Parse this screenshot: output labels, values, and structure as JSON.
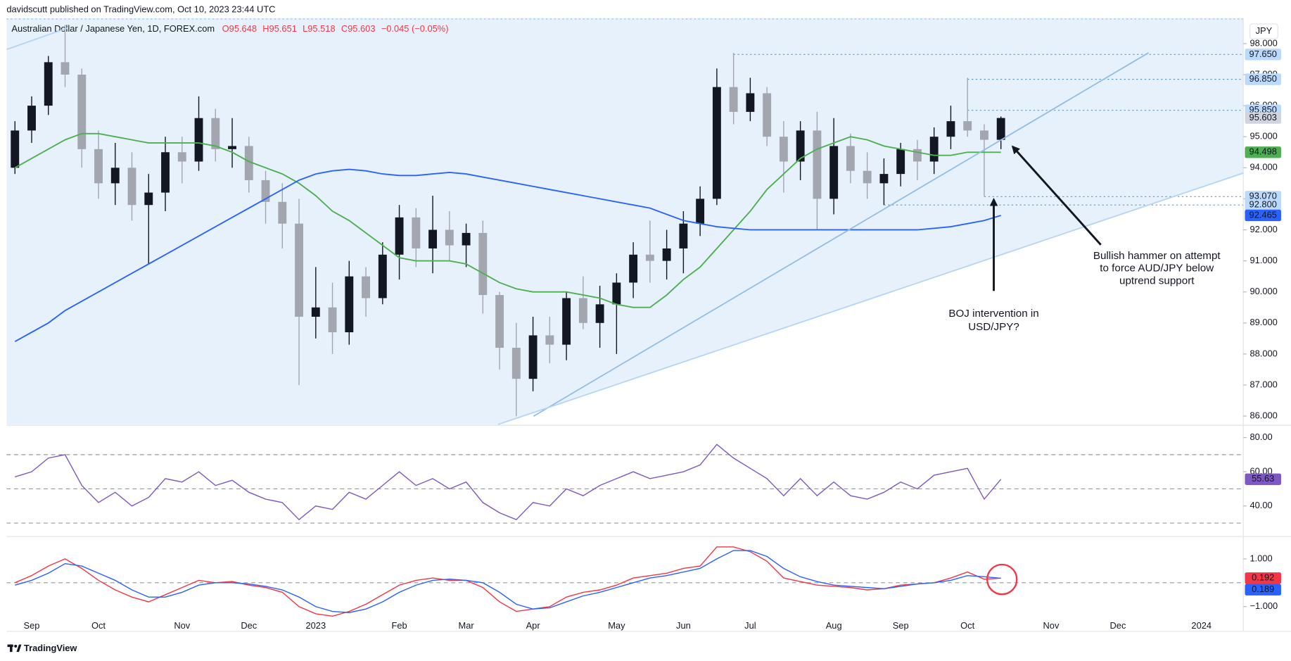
{
  "header": {
    "published": "davidscutt published on TradingView.com, Oct 10, 2023 23:44 UTC"
  },
  "footer": "TradingView",
  "chart_data": [
    {
      "type": "candlestick",
      "title": "Australian Dollar / Japanese Yen, 1D, FOREX.com",
      "ohlc_summary": [
        "O95.648",
        "H95.651",
        "L95.518",
        "C95.603",
        "−0.045 (−0.05%)"
      ],
      "axis_unit": "JPY",
      "categories": [
        null,
        "Sep",
        null,
        null,
        null,
        "Oct",
        null,
        null,
        null,
        null,
        "Nov",
        null,
        null,
        null,
        "Dec",
        null,
        null,
        null,
        "2023",
        null,
        null,
        null,
        null,
        "Feb",
        null,
        null,
        null,
        "Mar",
        null,
        null,
        null,
        "Apr",
        null,
        null,
        null,
        null,
        "May",
        null,
        null,
        null,
        "Jun",
        null,
        null,
        null,
        "Jul",
        null,
        null,
        null,
        null,
        "Aug",
        null,
        null,
        null,
        "Sep",
        null,
        null,
        null,
        "Oct",
        null,
        null,
        null,
        null,
        "Nov",
        null,
        null,
        null,
        "Dec",
        null,
        null,
        null,
        null,
        "2024",
        null,
        null
      ],
      "open": [
        94.0,
        95.2,
        96.0,
        97.4,
        97.0,
        94.6,
        93.5,
        94.0,
        92.8,
        93.2,
        94.5,
        94.2,
        95.6,
        94.6,
        94.7,
        93.6,
        92.9,
        92.2,
        89.2,
        89.5,
        88.7,
        90.5,
        89.8,
        91.2,
        92.4,
        91.4,
        92.0,
        91.5,
        91.9,
        89.9,
        88.2,
        87.2,
        88.6,
        88.3,
        89.8,
        89.0,
        89.6,
        90.3,
        91.2,
        91.0,
        91.4,
        92.2,
        93.0,
        96.6,
        95.8,
        96.4,
        95.0,
        94.2,
        95.2,
        93.0,
        94.7,
        93.9,
        93.5,
        93.8,
        94.6,
        94.2,
        95.0,
        95.5,
        95.2,
        94.9,
        null,
        null,
        null,
        null,
        null,
        null,
        null,
        null,
        null,
        null,
        null,
        null,
        null,
        null
      ],
      "high": [
        95.5,
        96.3,
        97.6,
        98.6,
        97.2,
        95.2,
        94.8,
        94.5,
        93.8,
        95.0,
        95.0,
        96.3,
        95.9,
        95.6,
        95.0,
        93.9,
        93.5,
        93.0,
        90.8,
        90.3,
        91.0,
        90.8,
        91.6,
        92.8,
        92.7,
        93.1,
        92.6,
        92.2,
        92.3,
        90.0,
        89.0,
        89.2,
        89.2,
        90.0,
        90.5,
        90.2,
        90.6,
        91.6,
        92.3,
        92.0,
        92.6,
        93.4,
        97.2,
        97.7,
        96.9,
        96.6,
        95.5,
        95.5,
        95.8,
        95.6,
        95.1,
        94.5,
        94.3,
        94.8,
        94.9,
        95.3,
        96.0,
        96.9,
        95.4,
        95.651,
        null,
        null,
        null,
        null,
        null,
        null,
        null,
        null,
        null,
        null,
        null,
        null,
        null,
        null
      ],
      "low": [
        93.8,
        94.8,
        95.7,
        96.6,
        94.0,
        93.0,
        92.8,
        92.3,
        90.9,
        92.6,
        93.5,
        93.9,
        94.2,
        94.0,
        93.2,
        92.2,
        91.4,
        87.0,
        88.5,
        88.0,
        88.3,
        89.2,
        89.6,
        90.4,
        90.8,
        90.6,
        91.0,
        90.8,
        89.3,
        87.5,
        86.0,
        86.8,
        87.7,
        87.8,
        88.8,
        88.2,
        88.0,
        89.8,
        90.3,
        90.4,
        90.6,
        91.8,
        92.8,
        95.4,
        95.5,
        94.7,
        93.2,
        93.6,
        92.0,
        92.5,
        93.5,
        93.0,
        92.8,
        93.4,
        93.6,
        93.8,
        94.6,
        95.0,
        93.07,
        94.6,
        null,
        null,
        null,
        null,
        null,
        null,
        null,
        null,
        null,
        null,
        null,
        null,
        null,
        null
      ],
      "close": [
        95.2,
        96.0,
        97.4,
        97.0,
        94.6,
        93.5,
        94.0,
        92.8,
        93.2,
        94.5,
        94.2,
        95.6,
        94.6,
        94.7,
        93.6,
        92.9,
        92.2,
        89.2,
        89.5,
        88.7,
        90.5,
        89.8,
        91.2,
        92.4,
        91.4,
        92.0,
        91.5,
        91.9,
        89.9,
        88.2,
        87.2,
        88.6,
        88.3,
        89.8,
        89.0,
        89.6,
        90.3,
        91.2,
        91.0,
        91.4,
        92.2,
        93.0,
        96.6,
        95.8,
        96.4,
        95.0,
        94.2,
        95.2,
        93.0,
        94.7,
        93.9,
        93.5,
        93.8,
        94.6,
        94.2,
        95.0,
        95.5,
        95.2,
        94.9,
        95.603,
        null,
        null,
        null,
        null,
        null,
        null,
        null,
        null,
        null,
        null,
        null,
        null,
        null,
        null
      ],
      "up_color": "#131722",
      "down_color": "#a3a6af",
      "series": [
        {
          "color": "#4caf50",
          "values": [
            94.0,
            94.3,
            94.6,
            94.9,
            95.1,
            95.1,
            95.0,
            94.9,
            94.8,
            94.8,
            94.8,
            94.8,
            94.7,
            94.5,
            94.2,
            94.0,
            93.8,
            93.5,
            93.1,
            92.6,
            92.3,
            91.9,
            91.5,
            91.1,
            91.0,
            91.0,
            91.0,
            90.9,
            90.6,
            90.3,
            90.1,
            90.0,
            90.0,
            90.0,
            89.9,
            89.8,
            89.6,
            89.5,
            89.5,
            89.9,
            90.4,
            90.8,
            91.4,
            92.0,
            92.6,
            93.3,
            93.8,
            94.3,
            94.6,
            94.8,
            95.0,
            94.9,
            94.7,
            94.6,
            94.5,
            94.4,
            94.4,
            94.5,
            94.5,
            94.498,
            null,
            null,
            null,
            null,
            null,
            null,
            null,
            null,
            null,
            null,
            null,
            null,
            null,
            null
          ]
        },
        {
          "color": "#2962ff",
          "values": [
            88.4,
            88.7,
            89.0,
            89.4,
            89.7,
            90.0,
            90.3,
            90.6,
            90.9,
            91.2,
            91.5,
            91.8,
            92.1,
            92.4,
            92.7,
            93.0,
            93.3,
            93.6,
            93.8,
            93.9,
            93.95,
            93.9,
            93.8,
            93.75,
            93.75,
            93.8,
            93.85,
            93.8,
            93.7,
            93.6,
            93.5,
            93.4,
            93.3,
            93.2,
            93.1,
            93.0,
            92.9,
            92.8,
            92.7,
            92.5,
            92.3,
            92.2,
            92.1,
            92.05,
            92.0,
            92.0,
            92.0,
            92.0,
            92.0,
            92.0,
            92.0,
            92.0,
            92.0,
            92.0,
            92.0,
            92.05,
            92.1,
            92.2,
            92.3,
            92.465,
            null,
            null,
            null,
            null,
            null,
            null,
            null,
            null,
            null,
            null,
            null,
            null,
            null,
            null
          ]
        }
      ],
      "ylim": [
        85.73,
        98.82
      ],
      "yticks": [
        {
          "value": 86,
          "label": "86.000"
        },
        {
          "value": 87,
          "label": "87.000"
        },
        {
          "value": 88,
          "label": "88.000"
        },
        {
          "value": 89,
          "label": "89.000"
        },
        {
          "value": 90,
          "label": "90.000"
        },
        {
          "value": 91,
          "label": "91.000"
        },
        {
          "value": 92,
          "label": "92.000"
        },
        {
          "value": 93,
          "label": "93.000"
        },
        {
          "value": 94,
          "label": "94.000"
        },
        {
          "value": 95,
          "label": "95.000"
        },
        {
          "value": 96,
          "label": "96.000"
        },
        {
          "value": 97,
          "label": "97.000"
        },
        {
          "value": 98,
          "label": "98.000"
        }
      ],
      "levels": [
        97.65,
        96.85,
        95.85,
        93.07,
        92.8
      ],
      "markers": [
        {
          "value": 97.65,
          "label": "97.650",
          "bg": "#bbd9fb",
          "fg": "#131722"
        },
        {
          "value": 96.85,
          "label": "96.850",
          "bg": "#bbd9fb",
          "fg": "#131722"
        },
        {
          "value": 95.85,
          "label": "95.850",
          "bg": "#bbd9fb",
          "fg": "#131722"
        },
        {
          "value": 95.603,
          "label": "95.603",
          "bg": "#d1d4dc",
          "fg": "#131722"
        },
        {
          "value": 94.498,
          "label": "94.498",
          "bg": "#4caf50",
          "fg": "#ffffff"
        },
        {
          "value": 93.07,
          "label": "93.070",
          "bg": "#bbd9fb",
          "fg": "#131722"
        },
        {
          "value": 92.8,
          "label": "92.800",
          "bg": "#bbd9fb",
          "fg": "#131722"
        },
        {
          "value": 92.465,
          "label": "92.465",
          "bg": "#2962ff",
          "fg": "#ffffff"
        }
      ],
      "annotations": [
        {
          "lines": [
            "Bullish hammer on attempt",
            "to force AUD/JPY below",
            "uptrend support"
          ]
        },
        {
          "lines": [
            "BOJ intervention in",
            "USD/JPY?"
          ]
        }
      ]
    },
    {
      "type": "line",
      "series": [
        {
          "color": "#7e57c2",
          "values": [
            57,
            60,
            68,
            70,
            52,
            42,
            48,
            40,
            45,
            56,
            54,
            60,
            52,
            55,
            48,
            44,
            42,
            32,
            40,
            38,
            48,
            44,
            52,
            60,
            52,
            56,
            50,
            54,
            42,
            36,
            32,
            42,
            40,
            50,
            46,
            52,
            56,
            60,
            56,
            58,
            60,
            64,
            76,
            68,
            62,
            56,
            46,
            56,
            46,
            54,
            46,
            44,
            48,
            54,
            50,
            58,
            60,
            62,
            44,
            55.63,
            null,
            null,
            null,
            null,
            null,
            null,
            null,
            null,
            null,
            null,
            null,
            null,
            null,
            null
          ]
        }
      ],
      "ylim": [
        22.6,
        86.7
      ],
      "yticks": [
        {
          "value": 40,
          "label": "40.00"
        },
        {
          "value": 60,
          "label": "60.00"
        },
        {
          "value": 80,
          "label": "80.00"
        }
      ],
      "hlines": [
        30,
        50,
        70
      ],
      "markers": [
        {
          "value": 55.63,
          "label": "55.63",
          "bg": "#7e57c2",
          "fg": "#ffffff"
        }
      ]
    },
    {
      "type": "line",
      "series": [
        {
          "color": "#f23645",
          "values": [
            0.0,
            0.3,
            0.7,
            1.0,
            0.6,
            0.1,
            -0.3,
            -0.6,
            -0.8,
            -0.5,
            -0.2,
            0.1,
            0.0,
            0.05,
            -0.1,
            -0.2,
            -0.4,
            -1.0,
            -1.3,
            -1.4,
            -1.2,
            -0.9,
            -0.5,
            -0.1,
            0.1,
            0.2,
            0.1,
            0.1,
            -0.2,
            -0.8,
            -1.2,
            -1.1,
            -1.0,
            -0.6,
            -0.4,
            -0.3,
            -0.1,
            0.2,
            0.3,
            0.4,
            0.6,
            0.7,
            1.5,
            1.5,
            1.3,
            0.9,
            0.2,
            0.05,
            -0.1,
            -0.15,
            -0.2,
            -0.3,
            -0.25,
            -0.1,
            -0.05,
            0.0,
            0.2,
            0.45,
            0.15,
            0.192,
            null,
            null,
            null,
            null,
            null,
            null,
            null,
            null,
            null,
            null,
            null,
            null,
            null,
            null
          ]
        },
        {
          "color": "#2962ff",
          "values": [
            -0.1,
            0.1,
            0.4,
            0.8,
            0.7,
            0.4,
            0.1,
            -0.3,
            -0.6,
            -0.6,
            -0.4,
            -0.1,
            0.0,
            0.0,
            -0.05,
            -0.15,
            -0.3,
            -0.6,
            -1.0,
            -1.2,
            -1.25,
            -1.1,
            -0.8,
            -0.4,
            -0.1,
            0.1,
            0.15,
            0.1,
            0.0,
            -0.4,
            -0.9,
            -1.1,
            -1.05,
            -0.8,
            -0.55,
            -0.4,
            -0.2,
            0.0,
            0.2,
            0.3,
            0.45,
            0.6,
            1.0,
            1.35,
            1.35,
            1.1,
            0.6,
            0.25,
            0.05,
            -0.1,
            -0.15,
            -0.2,
            -0.25,
            -0.15,
            -0.05,
            0.0,
            0.1,
            0.3,
            0.25,
            0.189,
            null,
            null,
            null,
            null,
            null,
            null,
            null,
            null,
            null,
            null,
            null,
            null,
            null,
            null
          ]
        }
      ],
      "ylim": [
        -2.0,
        1.9
      ],
      "yticks": [
        {
          "value": -1,
          "label": "−1.000"
        },
        {
          "value": 1,
          "label": "1.000"
        }
      ],
      "hlines": [
        0
      ],
      "markers": [
        {
          "value": 0.192,
          "label": "0.192",
          "bg": "#f23645",
          "fg": "#ffffff"
        },
        {
          "value": 0.189,
          "label": "0.189",
          "bg": "#2962ff",
          "fg": "#ffffff"
        }
      ]
    }
  ]
}
